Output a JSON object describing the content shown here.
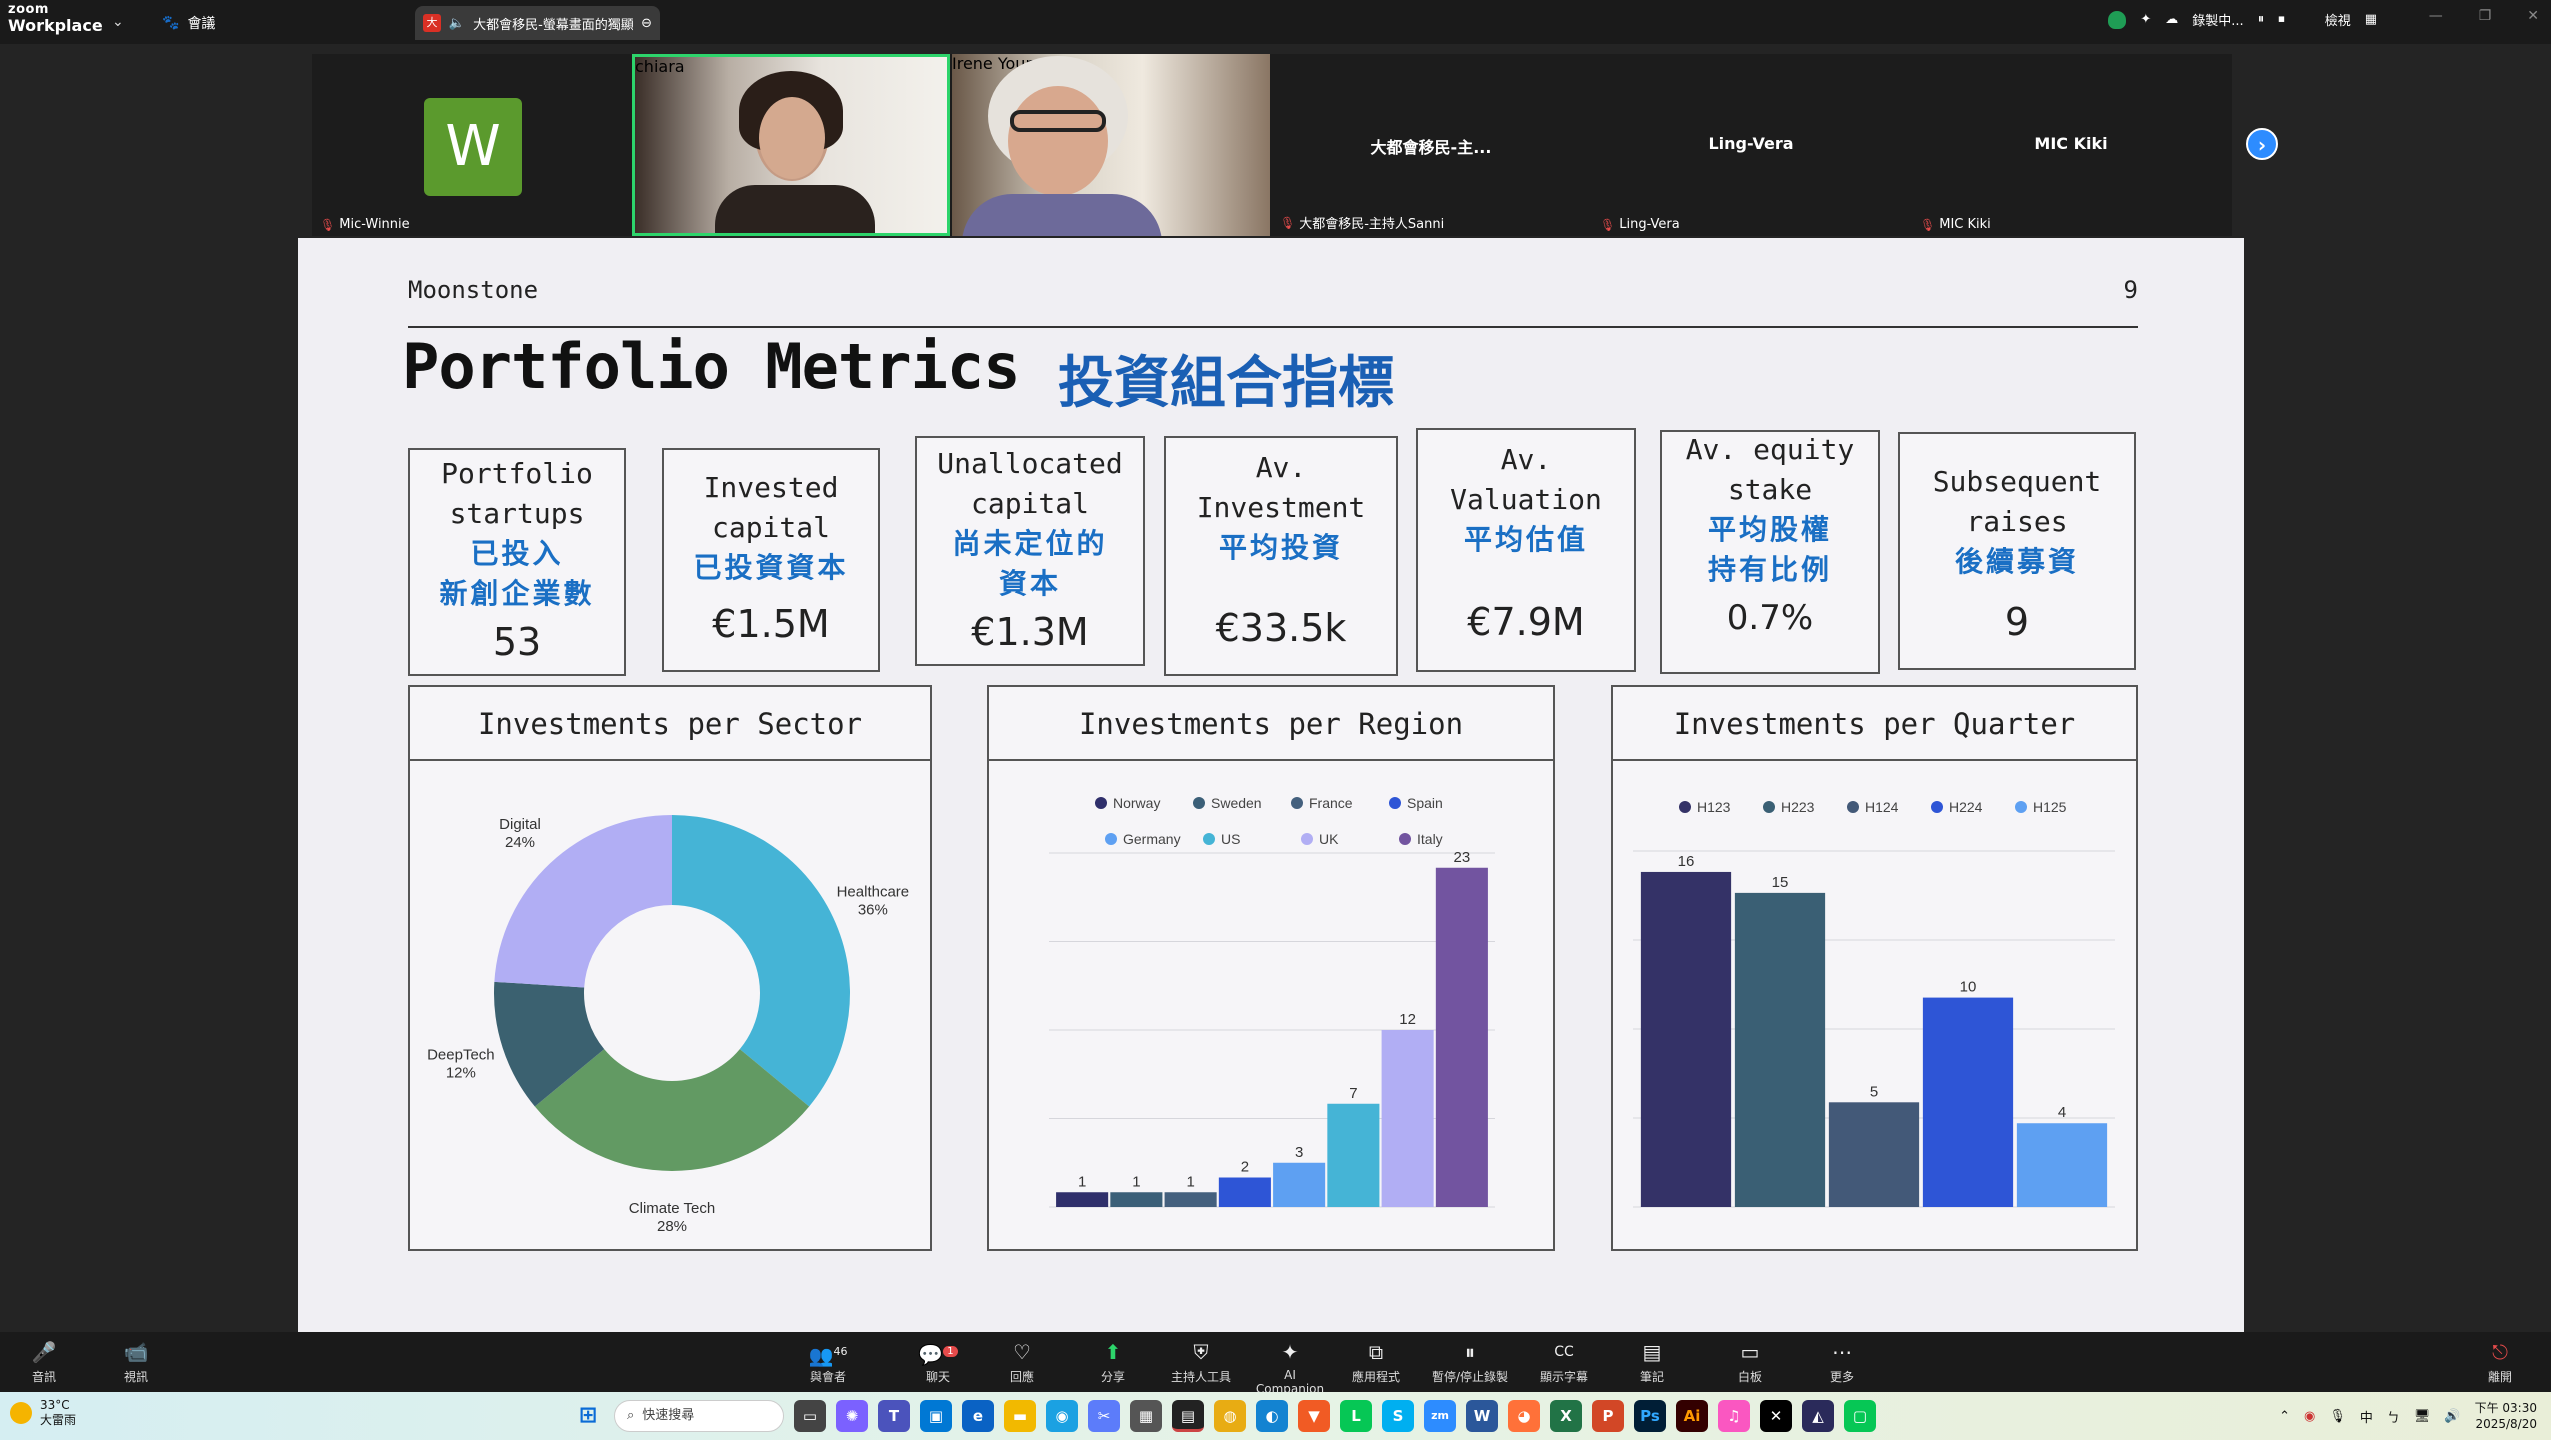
{
  "topbar": {
    "logo_top": "zoom",
    "logo_bottom": "Workplace",
    "meeting_label": "會議",
    "active_tab_title": "大都會移民-螢幕畫面的獨顯",
    "tab_badge": "大",
    "recording_label": "錄製中...",
    "view_label": "檢視"
  },
  "gallery": {
    "participants": [
      {
        "name": "Mic-Winnie",
        "initial": "W",
        "muted": true
      },
      {
        "name": "chiara",
        "video": true
      },
      {
        "name": "Irene Young",
        "video": true
      },
      {
        "name": "大都會移民-主持人Sanni",
        "center_name": "大都會移民-主...",
        "muted": true
      },
      {
        "name": "Ling-Vera",
        "center_name": "Ling-Vera",
        "muted": true
      },
      {
        "name": "MIC Kiki",
        "center_name": "MIC Kiki",
        "muted": true
      }
    ]
  },
  "slide": {
    "brand": "Moonstone",
    "page_number": "9",
    "title_en": "Portfolio Metrics",
    "title_zh": "投資組合指標",
    "metrics": [
      {
        "en": "Portfolio\nstartups",
        "zh": "已投入\n新創企業數",
        "value": "53"
      },
      {
        "en": "Invested\ncapital",
        "zh": "已投資資本",
        "value": "€1.5M"
      },
      {
        "en": "Unallocated\ncapital",
        "zh": "尚未定位的\n資本",
        "value": "€1.3M"
      },
      {
        "en": "Av.\nInvestment",
        "zh": "平均投資",
        "value": "€33.5k"
      },
      {
        "en": "Av.\nValuation",
        "zh": "平均估值",
        "value": "€7.9M"
      },
      {
        "en": "Av. equity\nstake",
        "zh": "平均股權\n持有比例",
        "value": "0.7%"
      },
      {
        "en": "Subsequent\nraises",
        "zh": "後續募資",
        "value": "9"
      }
    ],
    "panels": {
      "sector": "Investments per Sector",
      "region": "Investments per Region",
      "quarter": "Investments per Quarter"
    }
  },
  "chart_data": [
    {
      "type": "pie",
      "title": "Investments per Sector",
      "donut": true,
      "slices": [
        {
          "label": "Healthcare",
          "value": 36,
          "color": "#45b4d6"
        },
        {
          "label": "Climate Tech",
          "value": 28,
          "color": "#629a63"
        },
        {
          "label": "DeepTech",
          "value": 12,
          "color": "#3b6170"
        },
        {
          "label": "Digital",
          "value": 24,
          "color": "#b1aef4"
        }
      ]
    },
    {
      "type": "bar",
      "title": "Investments per Region",
      "legend_position": "top",
      "categories": [
        "Norway",
        "Sweden",
        "France",
        "Spain",
        "Germany",
        "US",
        "UK",
        "Italy"
      ],
      "values": [
        1,
        1,
        1,
        2,
        3,
        7,
        12,
        23
      ],
      "colors": [
        "#2f2f6b",
        "#3b5f78",
        "#44607e",
        "#2e55d6",
        "#5ea0f2",
        "#45b4d6",
        "#b1aef4",
        "#7254a0"
      ],
      "ylim": [
        0,
        24
      ],
      "grid": true
    },
    {
      "type": "bar",
      "title": "Investments per Quarter",
      "legend_position": "top",
      "categories": [
        "H123",
        "H223",
        "H124",
        "H224",
        "H125"
      ],
      "values": [
        16,
        15,
        5,
        10,
        4
      ],
      "colors": [
        "#343267",
        "#3a5f74",
        "#435978",
        "#2e55d6",
        "#5ea0f2"
      ],
      "ylim": [
        0,
        17
      ],
      "grid": true
    }
  ],
  "toolbar": {
    "items": [
      {
        "label": "音訊",
        "icon": "🎤"
      },
      {
        "label": "視訊",
        "icon": "📹"
      },
      {
        "label": "與會者",
        "icon": "👥",
        "badge": "46"
      },
      {
        "label": "聊天",
        "icon": "💬",
        "badge": "1"
      },
      {
        "label": "回應",
        "icon": "♡"
      },
      {
        "label": "分享",
        "icon": "⬆"
      },
      {
        "label": "主持人工具",
        "icon": "⛨"
      },
      {
        "label": "AI Companion",
        "icon": "✦"
      },
      {
        "label": "應用程式",
        "icon": "⧉"
      },
      {
        "label": "暫停/停止錄製",
        "icon": "⏸"
      },
      {
        "label": "顯示字幕",
        "icon": "CC"
      },
      {
        "label": "筆記",
        "icon": "▤"
      },
      {
        "label": "白板",
        "icon": "▭"
      },
      {
        "label": "更多",
        "icon": "⋯"
      },
      {
        "label": "離開",
        "icon": "⎋"
      }
    ]
  },
  "taskbar": {
    "weather_temp": "33°C",
    "weather_desc": "大雷雨",
    "search_placeholder": "快速搜尋",
    "ime_label": "中",
    "time": "下午 03:30",
    "date": "2025/8/20"
  }
}
